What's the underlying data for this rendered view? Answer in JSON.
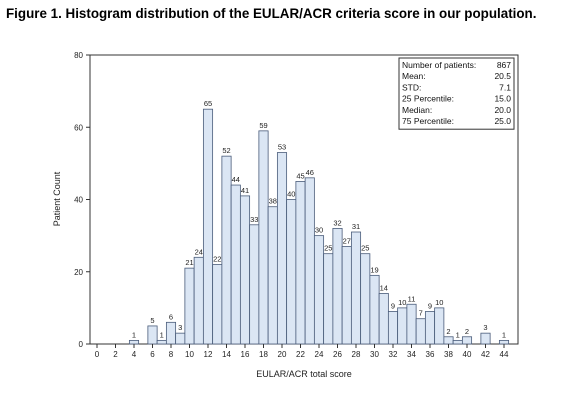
{
  "caption": "Figure 1. Histogram distribution of the EULAR/ACR criteria score in our population.",
  "chart_data": {
    "type": "bar",
    "xlabel": "EULAR/ACR total score",
    "ylabel": "Patient Count",
    "xlim": [
      0,
      44
    ],
    "ylim": [
      0,
      80
    ],
    "x_ticks": [
      0,
      2,
      4,
      6,
      8,
      10,
      12,
      14,
      16,
      18,
      20,
      22,
      24,
      26,
      28,
      30,
      32,
      34,
      36,
      38,
      40,
      42,
      44
    ],
    "y_ticks": [
      0,
      20,
      40,
      60,
      80
    ],
    "bar_color": "#dbe6f4",
    "bar_edge_color": "#4a5c7a",
    "x": [
      4,
      6,
      7,
      8,
      9,
      10,
      11,
      12,
      13,
      14,
      15,
      16,
      17,
      18,
      19,
      20,
      21,
      22,
      23,
      24,
      25,
      26,
      27,
      28,
      29,
      30,
      31,
      32,
      33,
      34,
      35,
      36,
      37,
      38,
      39,
      40,
      42,
      44
    ],
    "values": [
      1,
      5,
      1,
      6,
      3,
      21,
      24,
      65,
      22,
      52,
      44,
      41,
      33,
      59,
      38,
      53,
      40,
      45,
      46,
      30,
      25,
      32,
      27,
      31,
      25,
      19,
      14,
      9,
      10,
      11,
      7,
      9,
      10,
      2,
      1,
      2,
      3,
      1
    ],
    "stats": [
      {
        "label": "Number of patients:",
        "value": "867"
      },
      {
        "label": "Mean:",
        "value": "20.5"
      },
      {
        "label": "STD:",
        "value": "7.1"
      },
      {
        "label": "25 Percentile:",
        "value": "15.0"
      },
      {
        "label": "Median:",
        "value": "20.0"
      },
      {
        "label": "75 Percentile:",
        "value": "25.0"
      }
    ]
  }
}
